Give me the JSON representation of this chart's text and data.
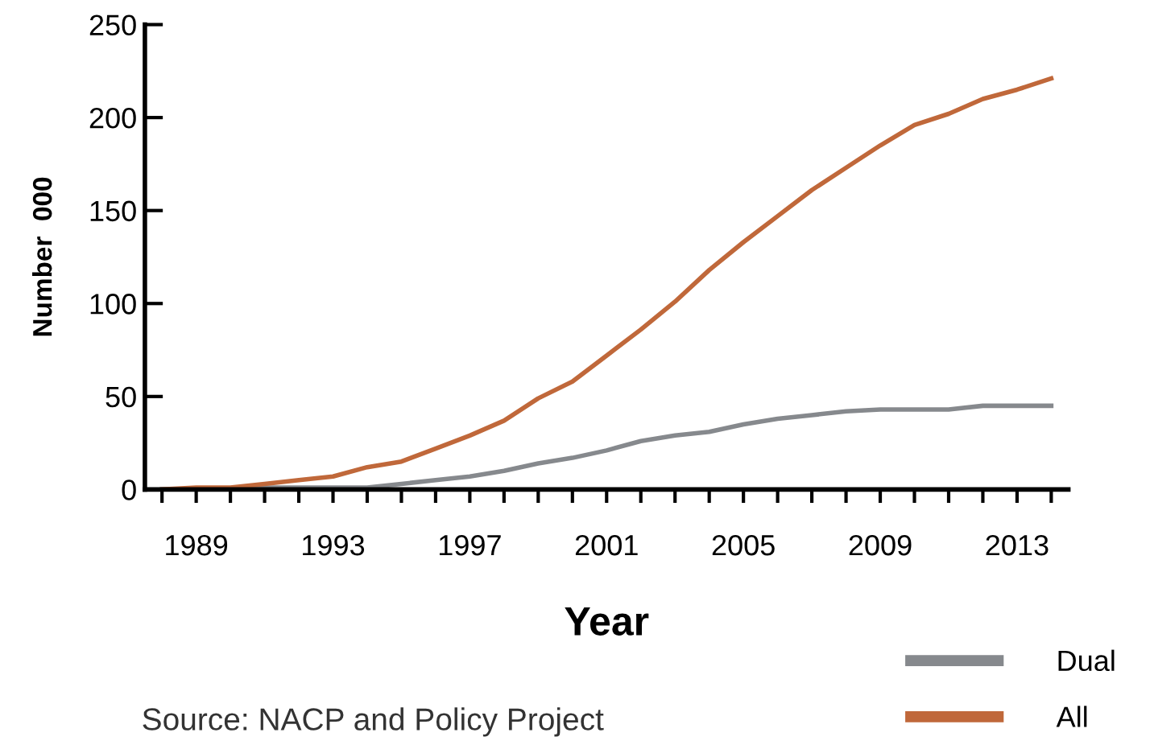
{
  "chart_data": {
    "type": "line",
    "xlabel": "Year",
    "ylabel": "Number  000",
    "x": [
      1988,
      1989,
      1990,
      1991,
      1992,
      1993,
      1994,
      1995,
      1996,
      1997,
      1998,
      1999,
      2000,
      2001,
      2002,
      2003,
      2004,
      2005,
      2006,
      2007,
      2008,
      2009,
      2010,
      2011,
      2012,
      2013,
      2014
    ],
    "series": [
      {
        "name": "Dual",
        "color": "#86898d",
        "values": [
          0,
          0,
          0,
          1,
          1,
          1,
          1,
          3,
          5,
          7,
          10,
          14,
          17,
          21,
          26,
          29,
          31,
          35,
          38,
          40,
          42,
          43,
          43,
          43,
          45,
          45,
          45
        ]
      },
      {
        "name": "All",
        "color": "#c0683a",
        "values": [
          0,
          1,
          1,
          3,
          5,
          7,
          12,
          15,
          22,
          29,
          37,
          49,
          58,
          72,
          86,
          101,
          118,
          133,
          147,
          161,
          173,
          185,
          196,
          202,
          210,
          215,
          221
        ]
      }
    ],
    "xlim": [
      1987.5,
      2014.5
    ],
    "xticks": [
      {
        "value": 1988,
        "label": null
      },
      1989,
      {
        "value": 1990,
        "label": null
      },
      {
        "value": 1991,
        "label": null
      },
      {
        "value": 1992,
        "label": null
      },
      1993,
      {
        "value": 1994,
        "label": null
      },
      {
        "value": 1995,
        "label": null
      },
      {
        "value": 1996,
        "label": null
      },
      1997,
      {
        "value": 1998,
        "label": null
      },
      {
        "value": 1999,
        "label": null
      },
      {
        "value": 2000,
        "label": null
      },
      2001,
      {
        "value": 2002,
        "label": null
      },
      {
        "value": 2003,
        "label": null
      },
      {
        "value": 2004,
        "label": null
      },
      2005,
      {
        "value": 2006,
        "label": null
      },
      {
        "value": 2007,
        "label": null
      },
      {
        "value": 2008,
        "label": null
      },
      2009,
      {
        "value": 2010,
        "label": null
      },
      {
        "value": 2011,
        "label": null
      },
      {
        "value": 2012,
        "label": null
      },
      2013,
      {
        "value": 2014,
        "label": null
      }
    ],
    "ylim": [
      0,
      250
    ],
    "yticks": [
      0,
      50,
      100,
      150,
      200,
      250
    ],
    "grid": false,
    "legend": "bottom right",
    "marker": "none",
    "line_style": "solid",
    "annotations": [
      "Source: NACP and Policy Project"
    ]
  }
}
